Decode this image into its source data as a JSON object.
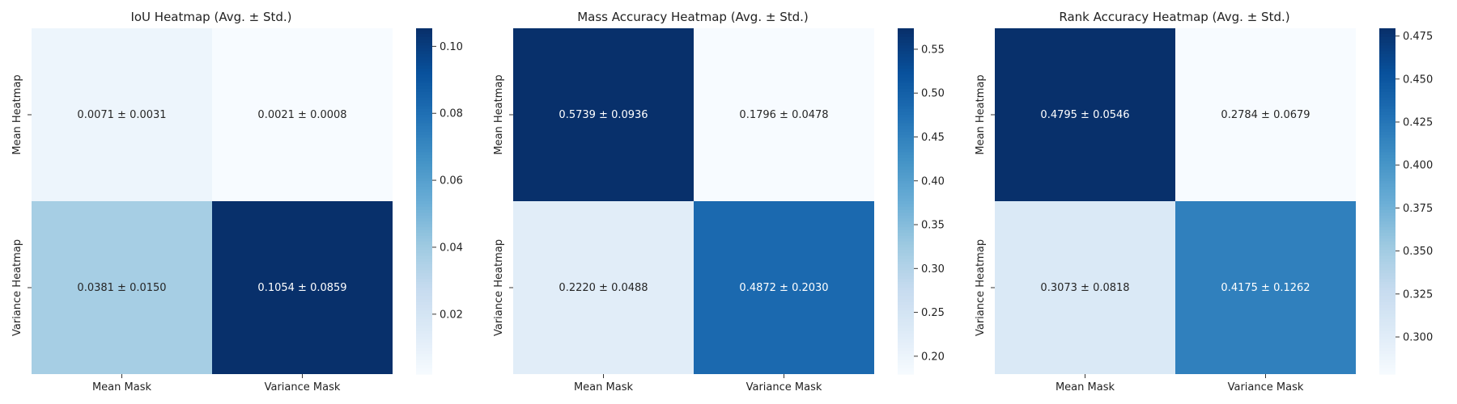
{
  "chart_data": [
    {
      "type": "heatmap",
      "title": "IoU Heatmap (Avg. ± Std.)",
      "x_categories": [
        "Mean Mask",
        "Variance Mask"
      ],
      "y_categories": [
        "Mean Heatmap",
        "Variance Heatmap"
      ],
      "values": [
        [
          0.0071,
          0.0021
        ],
        [
          0.0381,
          0.1054
        ]
      ],
      "std": [
        [
          0.0031,
          0.0008
        ],
        [
          0.015,
          0.0859
        ]
      ],
      "cell_labels": [
        [
          "0.0071 ± 0.0031",
          "0.0021 ± 0.0008"
        ],
        [
          "0.0381 ± 0.0150",
          "0.1054 ± 0.0859"
        ]
      ],
      "colormap": "Blues",
      "colorbar_range": [
        0.0021,
        0.1054
      ],
      "colorbar_ticks": [
        0.02,
        0.04,
        0.06,
        0.08,
        0.1
      ],
      "colorbar_tick_labels": [
        "0.02",
        "0.04",
        "0.06",
        "0.08",
        "0.10"
      ]
    },
    {
      "type": "heatmap",
      "title": "Mass Accuracy Heatmap (Avg. ± Std.)",
      "x_categories": [
        "Mean Mask",
        "Variance Mask"
      ],
      "y_categories": [
        "Mean Heatmap",
        "Variance Heatmap"
      ],
      "values": [
        [
          0.5739,
          0.1796
        ],
        [
          0.222,
          0.4872
        ]
      ],
      "std": [
        [
          0.0936,
          0.0478
        ],
        [
          0.0488,
          0.203
        ]
      ],
      "cell_labels": [
        [
          "0.5739 ± 0.0936",
          "0.1796 ± 0.0478"
        ],
        [
          "0.2220 ± 0.0488",
          "0.4872 ± 0.2030"
        ]
      ],
      "colormap": "Blues",
      "colorbar_range": [
        0.1796,
        0.5739
      ],
      "colorbar_ticks": [
        0.2,
        0.25,
        0.3,
        0.35,
        0.4,
        0.45,
        0.5,
        0.55
      ],
      "colorbar_tick_labels": [
        "0.20",
        "0.25",
        "0.30",
        "0.35",
        "0.40",
        "0.45",
        "0.50",
        "0.55"
      ]
    },
    {
      "type": "heatmap",
      "title": "Rank Accuracy Heatmap (Avg. ± Std.)",
      "x_categories": [
        "Mean Mask",
        "Variance Mask"
      ],
      "y_categories": [
        "Mean Heatmap",
        "Variance Heatmap"
      ],
      "values": [
        [
          0.4795,
          0.2784
        ],
        [
          0.3073,
          0.4175
        ]
      ],
      "std": [
        [
          0.0546,
          0.0679
        ],
        [
          0.0818,
          0.1262
        ]
      ],
      "cell_labels": [
        [
          "0.4795 ± 0.0546",
          "0.2784 ± 0.0679"
        ],
        [
          "0.3073 ± 0.0818",
          "0.4175 ± 0.1262"
        ]
      ],
      "colormap": "Blues",
      "colorbar_range": [
        0.2784,
        0.4795
      ],
      "colorbar_ticks": [
        0.3,
        0.325,
        0.35,
        0.375,
        0.4,
        0.425,
        0.45,
        0.475
      ],
      "colorbar_tick_labels": [
        "0.300",
        "0.325",
        "0.350",
        "0.375",
        "0.400",
        "0.425",
        "0.450",
        "0.475"
      ]
    }
  ]
}
